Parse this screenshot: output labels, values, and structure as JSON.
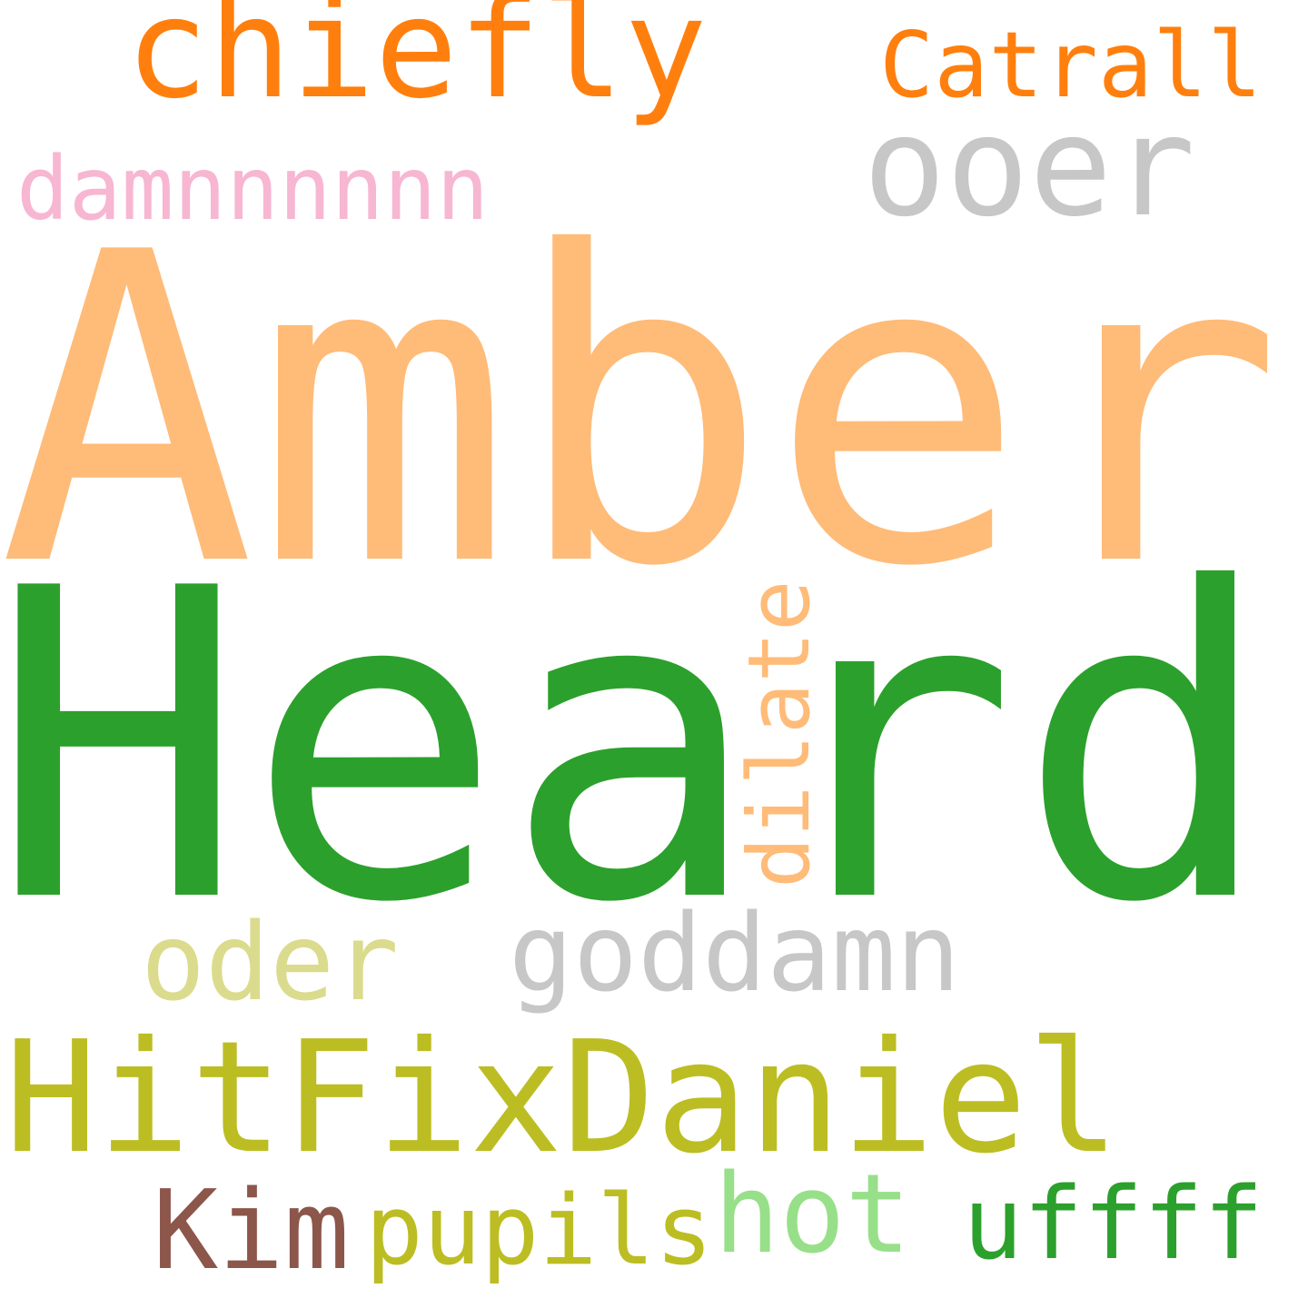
{
  "wordcloud": {
    "background": "#ffffff",
    "words": {
      "amber": {
        "text": "Amber",
        "color": "#ffbb78"
      },
      "heard": {
        "text": "Heard",
        "color": "#2ca02c"
      },
      "hitfix": {
        "text": "HitFixDaniel",
        "color": "#bcbd22"
      },
      "chiefly": {
        "text": "chiefly",
        "color": "#ff7f0e"
      },
      "ooer": {
        "text": "ooer",
        "color": "#c7c7c7"
      },
      "catrall": {
        "text": "Catrall",
        "color": "#ff7f0e"
      },
      "goddamn": {
        "text": "goddamn",
        "color": "#c7c7c7"
      },
      "oder": {
        "text": "oder",
        "color": "#dbdb8d"
      },
      "damn": {
        "text": "damnnnnnn",
        "color": "#f7b6d2"
      },
      "dilate": {
        "text": "dilate",
        "color": "#ffbb78"
      },
      "kim": {
        "text": "Kim",
        "color": "#8c564b"
      },
      "pupils": {
        "text": "pupils",
        "color": "#bcbd22"
      },
      "hot": {
        "text": "hot",
        "color": "#98df8a"
      },
      "uffff": {
        "text": "uffff",
        "color": "#2ca02c"
      }
    }
  }
}
